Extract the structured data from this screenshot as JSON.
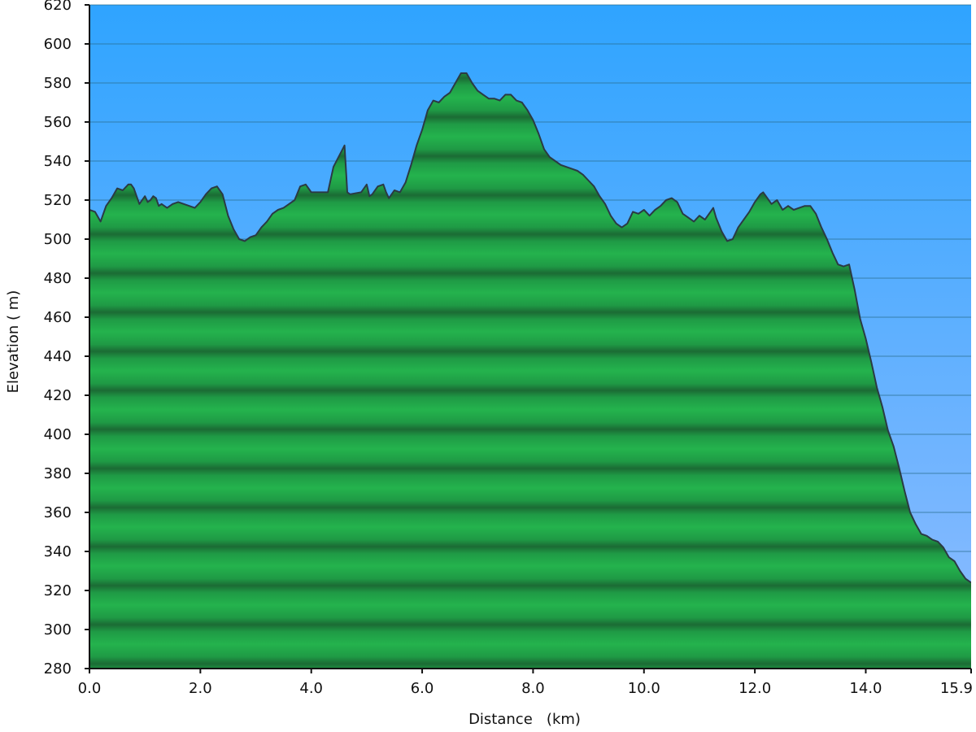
{
  "chart_data": {
    "type": "area",
    "xlabel": "Distance   (km)",
    "ylabel": "Elevation ( m)",
    "x_ticks": [
      {
        "value": 0.0,
        "label": "0.0"
      },
      {
        "value": 2.0,
        "label": "2.0"
      },
      {
        "value": 4.0,
        "label": "4.0"
      },
      {
        "value": 6.0,
        "label": "6.0"
      },
      {
        "value": 8.0,
        "label": "8.0"
      },
      {
        "value": 10.0,
        "label": "10.0"
      },
      {
        "value": 12.0,
        "label": "12.0"
      },
      {
        "value": 14.0,
        "label": "14.0"
      },
      {
        "value": 15.9,
        "label": "15.9"
      }
    ],
    "y_ticks": [
      280,
      300,
      320,
      340,
      360,
      380,
      400,
      420,
      440,
      460,
      480,
      500,
      520,
      540,
      560,
      580,
      600,
      620
    ],
    "xlim": [
      0.0,
      15.9
    ],
    "ylim": [
      280,
      620
    ],
    "grid": true,
    "colors": {
      "sky_top": "#2fa4ff",
      "sky_bottom": "#8fbcff",
      "fill_light": "#22b04b",
      "fill_dark": "#1d6e36",
      "outline": "#2b3a44",
      "grid": "#2a6f8f",
      "axis": "#111111"
    },
    "series": [
      {
        "points": [
          [
            0.0,
            515
          ],
          [
            0.1,
            514
          ],
          [
            0.2,
            509
          ],
          [
            0.3,
            517
          ],
          [
            0.4,
            521
          ],
          [
            0.5,
            526
          ],
          [
            0.6,
            525
          ],
          [
            0.7,
            528
          ],
          [
            0.75,
            528
          ],
          [
            0.8,
            526
          ],
          [
            0.9,
            518
          ],
          [
            1.0,
            522
          ],
          [
            1.05,
            519
          ],
          [
            1.1,
            520
          ],
          [
            1.15,
            522
          ],
          [
            1.2,
            521
          ],
          [
            1.25,
            517
          ],
          [
            1.3,
            518
          ],
          [
            1.4,
            516
          ],
          [
            1.5,
            518
          ],
          [
            1.6,
            519
          ],
          [
            1.7,
            518
          ],
          [
            1.8,
            517
          ],
          [
            1.9,
            516
          ],
          [
            2.0,
            519
          ],
          [
            2.1,
            523
          ],
          [
            2.2,
            526
          ],
          [
            2.3,
            527
          ],
          [
            2.4,
            523
          ],
          [
            2.5,
            512
          ],
          [
            2.6,
            505
          ],
          [
            2.7,
            500
          ],
          [
            2.8,
            499
          ],
          [
            2.9,
            501
          ],
          [
            3.0,
            502
          ],
          [
            3.1,
            506
          ],
          [
            3.2,
            509
          ],
          [
            3.3,
            513
          ],
          [
            3.4,
            515
          ],
          [
            3.5,
            516
          ],
          [
            3.6,
            518
          ],
          [
            3.7,
            520
          ],
          [
            3.8,
            527
          ],
          [
            3.9,
            528
          ],
          [
            4.0,
            524
          ],
          [
            4.3,
            524
          ],
          [
            4.4,
            537
          ],
          [
            4.6,
            548
          ],
          [
            4.65,
            524
          ],
          [
            4.7,
            523
          ],
          [
            4.9,
            524
          ],
          [
            5.0,
            528
          ],
          [
            5.05,
            522
          ],
          [
            5.1,
            523
          ],
          [
            5.2,
            527
          ],
          [
            5.3,
            528
          ],
          [
            5.35,
            524
          ],
          [
            5.4,
            521
          ],
          [
            5.5,
            525
          ],
          [
            5.6,
            524
          ],
          [
            5.7,
            529
          ],
          [
            5.8,
            538
          ],
          [
            5.9,
            548
          ],
          [
            6.0,
            556
          ],
          [
            6.1,
            566
          ],
          [
            6.2,
            571
          ],
          [
            6.3,
            570
          ],
          [
            6.4,
            573
          ],
          [
            6.5,
            575
          ],
          [
            6.6,
            580
          ],
          [
            6.7,
            585
          ],
          [
            6.8,
            585
          ],
          [
            6.9,
            580
          ],
          [
            7.0,
            576
          ],
          [
            7.1,
            574
          ],
          [
            7.2,
            572
          ],
          [
            7.3,
            572
          ],
          [
            7.4,
            571
          ],
          [
            7.5,
            574
          ],
          [
            7.6,
            574
          ],
          [
            7.7,
            571
          ],
          [
            7.8,
            570
          ],
          [
            7.9,
            566
          ],
          [
            8.0,
            561
          ],
          [
            8.1,
            554
          ],
          [
            8.2,
            546
          ],
          [
            8.3,
            542
          ],
          [
            8.4,
            540
          ],
          [
            8.5,
            538
          ],
          [
            8.6,
            537
          ],
          [
            8.7,
            536
          ],
          [
            8.8,
            535
          ],
          [
            8.9,
            533
          ],
          [
            9.0,
            530
          ],
          [
            9.1,
            527
          ],
          [
            9.2,
            522
          ],
          [
            9.3,
            518
          ],
          [
            9.4,
            512
          ],
          [
            9.5,
            508
          ],
          [
            9.6,
            506
          ],
          [
            9.7,
            508
          ],
          [
            9.8,
            514
          ],
          [
            9.9,
            513
          ],
          [
            10.0,
            515
          ],
          [
            10.1,
            512
          ],
          [
            10.2,
            515
          ],
          [
            10.3,
            517
          ],
          [
            10.4,
            520
          ],
          [
            10.5,
            521
          ],
          [
            10.6,
            519
          ],
          [
            10.7,
            513
          ],
          [
            10.8,
            511
          ],
          [
            10.9,
            509
          ],
          [
            11.0,
            512
          ],
          [
            11.1,
            510
          ],
          [
            11.2,
            514
          ],
          [
            11.25,
            516
          ],
          [
            11.3,
            511
          ],
          [
            11.4,
            504
          ],
          [
            11.5,
            499
          ],
          [
            11.6,
            500
          ],
          [
            11.7,
            506
          ],
          [
            11.8,
            510
          ],
          [
            11.9,
            514
          ],
          [
            12.0,
            519
          ],
          [
            12.1,
            523
          ],
          [
            12.15,
            524
          ],
          [
            12.2,
            522
          ],
          [
            12.3,
            518
          ],
          [
            12.4,
            520
          ],
          [
            12.5,
            515
          ],
          [
            12.6,
            517
          ],
          [
            12.7,
            515
          ],
          [
            12.8,
            516
          ],
          [
            12.9,
            517
          ],
          [
            13.0,
            517
          ],
          [
            13.1,
            513
          ],
          [
            13.2,
            506
          ],
          [
            13.3,
            500
          ],
          [
            13.4,
            493
          ],
          [
            13.5,
            487
          ],
          [
            13.6,
            486
          ],
          [
            13.7,
            487
          ],
          [
            13.8,
            474
          ],
          [
            13.9,
            459
          ],
          [
            14.0,
            449
          ],
          [
            14.1,
            437
          ],
          [
            14.2,
            424
          ],
          [
            14.3,
            414
          ],
          [
            14.4,
            402
          ],
          [
            14.5,
            394
          ],
          [
            14.6,
            383
          ],
          [
            14.7,
            371
          ],
          [
            14.8,
            360
          ],
          [
            14.9,
            354
          ],
          [
            15.0,
            349
          ],
          [
            15.1,
            348
          ],
          [
            15.2,
            346
          ],
          [
            15.3,
            345
          ],
          [
            15.4,
            342
          ],
          [
            15.5,
            337
          ],
          [
            15.6,
            335
          ],
          [
            15.7,
            330
          ],
          [
            15.8,
            326
          ],
          [
            15.9,
            324
          ]
        ]
      }
    ]
  }
}
